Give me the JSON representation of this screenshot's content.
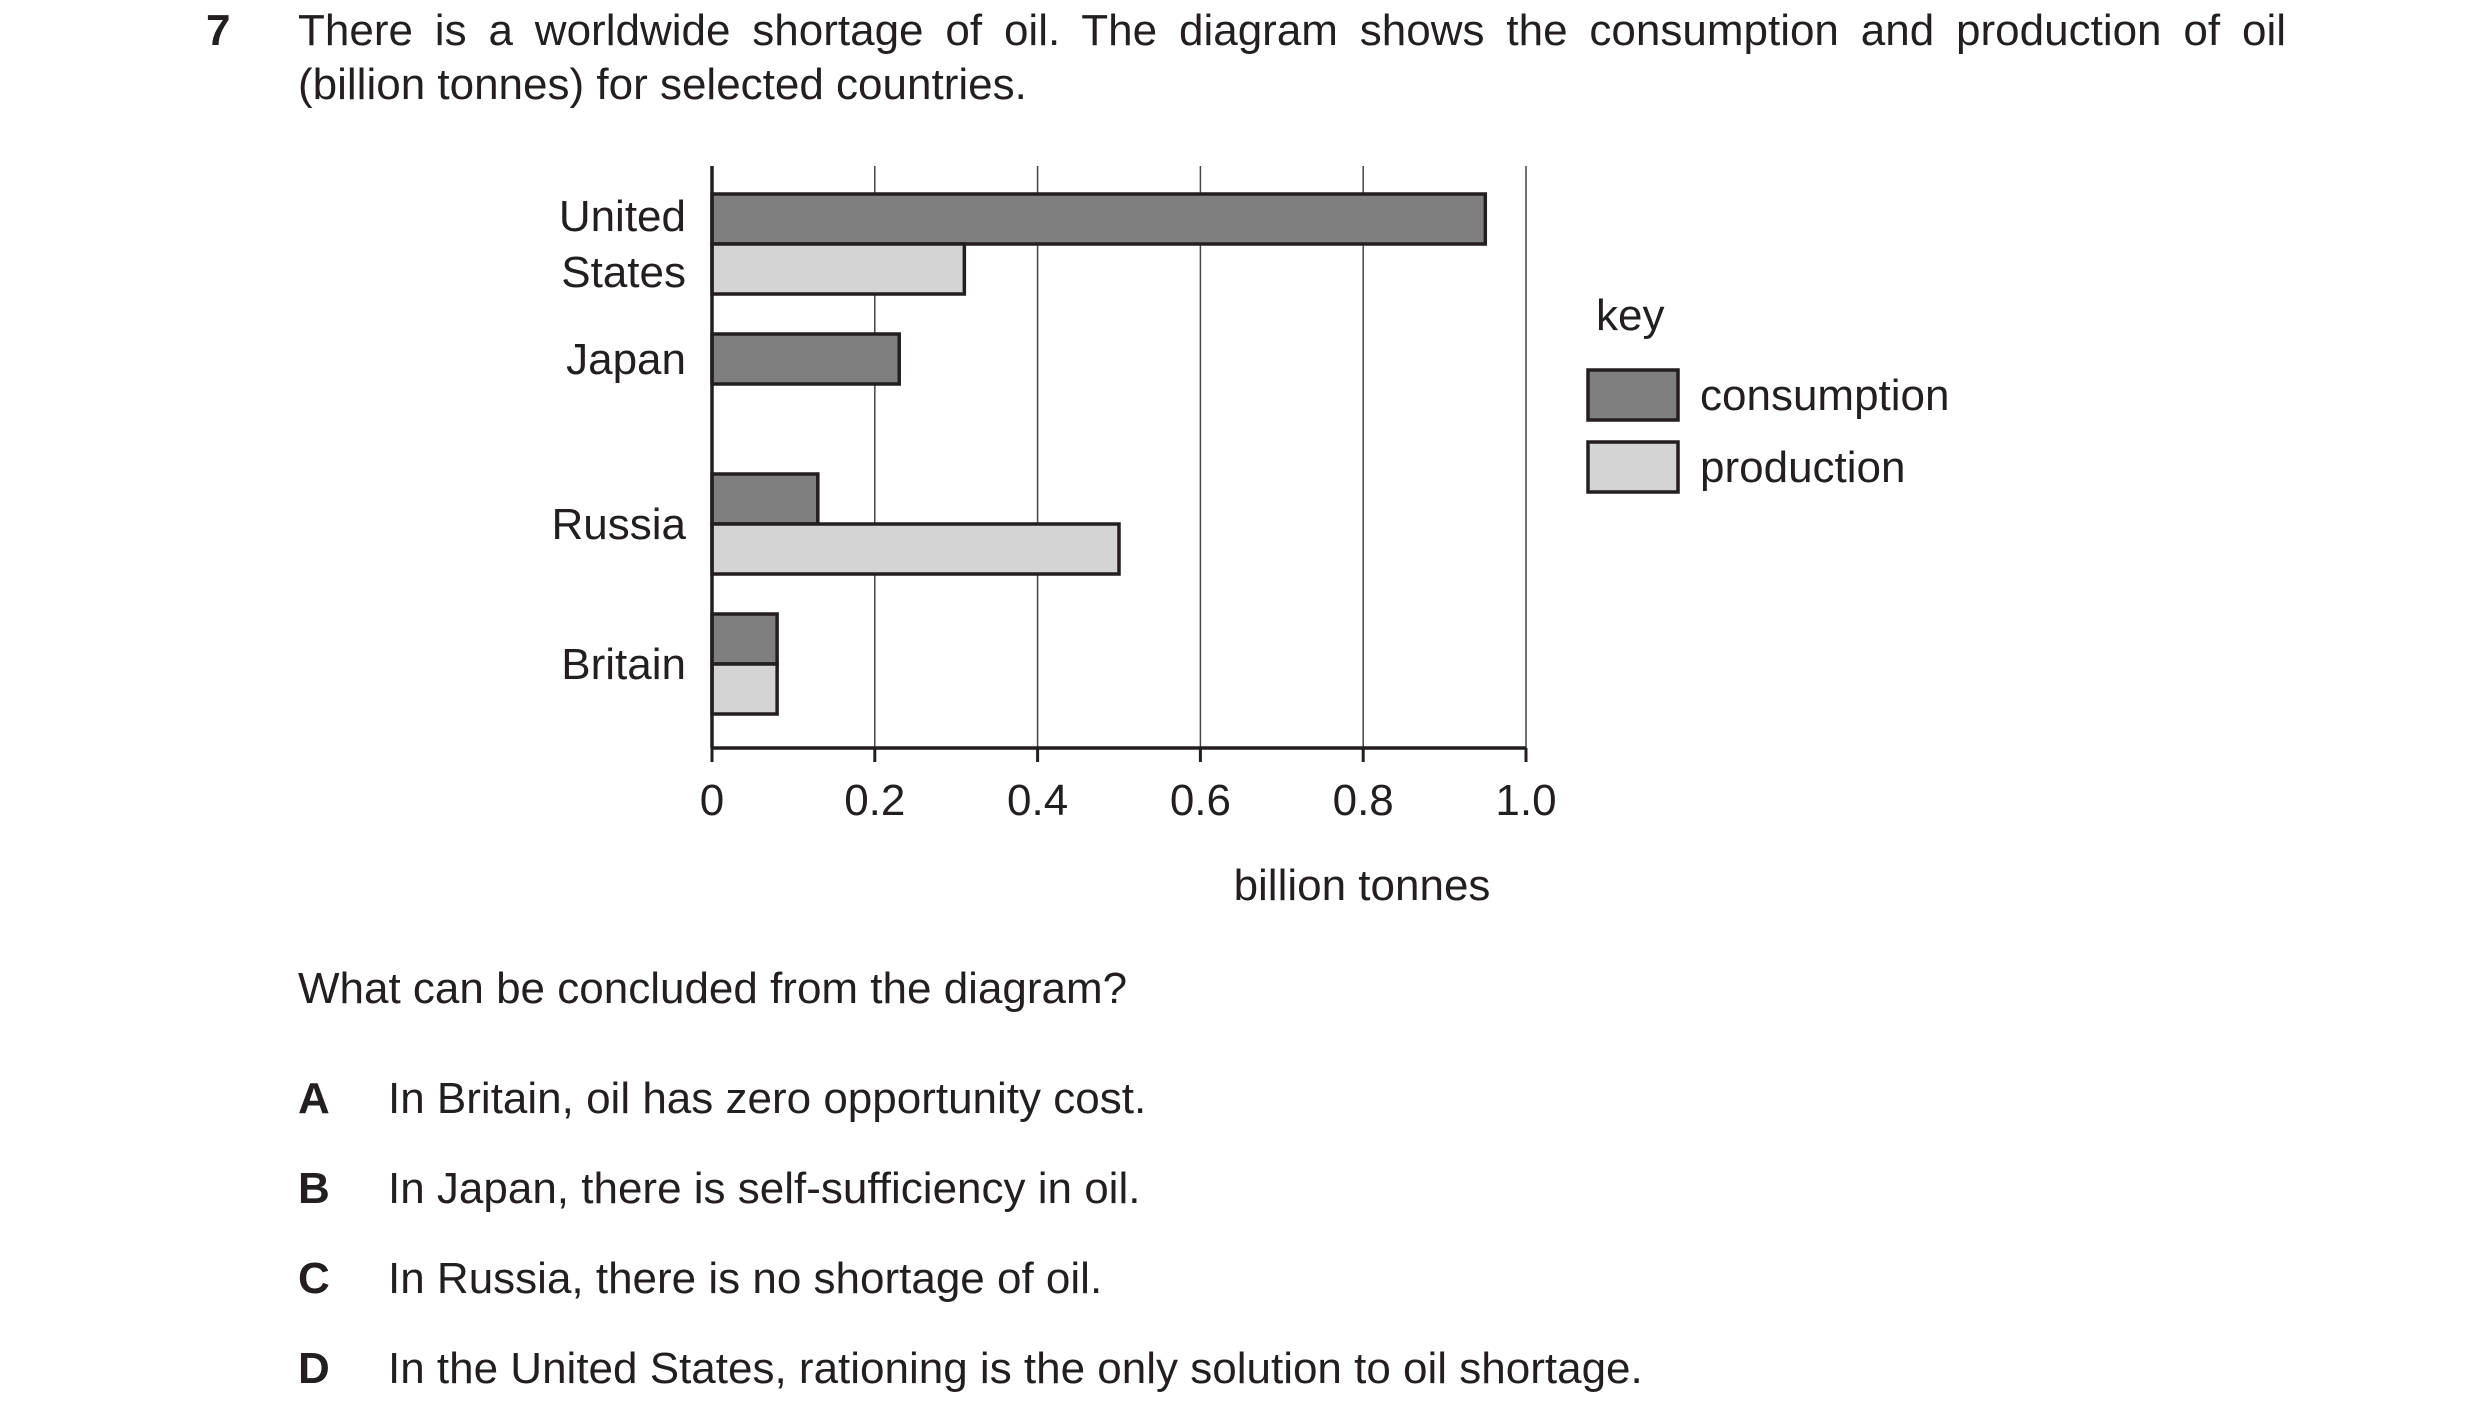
{
  "question": {
    "number": "7",
    "stem_line1": "There is a worldwide shortage of oil. The diagram shows the consumption and production of oil",
    "stem_line2": "(billion tonnes) for selected countries.",
    "prompt": "What can be concluded from the diagram?",
    "options": [
      {
        "letter": "A",
        "text": "In Britain, oil has zero opportunity cost."
      },
      {
        "letter": "B",
        "text": "In Japan, there is self-sufficiency in oil."
      },
      {
        "letter": "C",
        "text": "In Russia, there is no shortage of oil."
      },
      {
        "letter": "D",
        "text": "In the United States, rationing is the only solution to oil shortage."
      }
    ]
  },
  "chart_data": {
    "type": "bar",
    "orientation": "horizontal",
    "categories": [
      [
        "United",
        "States"
      ],
      [
        "Japan"
      ],
      [
        "Russia"
      ],
      [
        "Britain"
      ]
    ],
    "series": [
      {
        "name": "consumption",
        "values": [
          0.95,
          0.23,
          0.13,
          0.08
        ],
        "color": "#7f7f7f"
      },
      {
        "name": "production",
        "values": [
          0.31,
          0,
          0.5,
          0.08
        ],
        "color": "#d4d4d4"
      }
    ],
    "xlabel": "billion tonnes",
    "xlim": [
      0,
      1.0
    ],
    "xticks": [
      "0",
      "0.2",
      "0.4",
      "0.6",
      "0.8",
      "1.0"
    ],
    "grid": "vertical",
    "legend": {
      "title": "key",
      "placement": "right"
    }
  }
}
